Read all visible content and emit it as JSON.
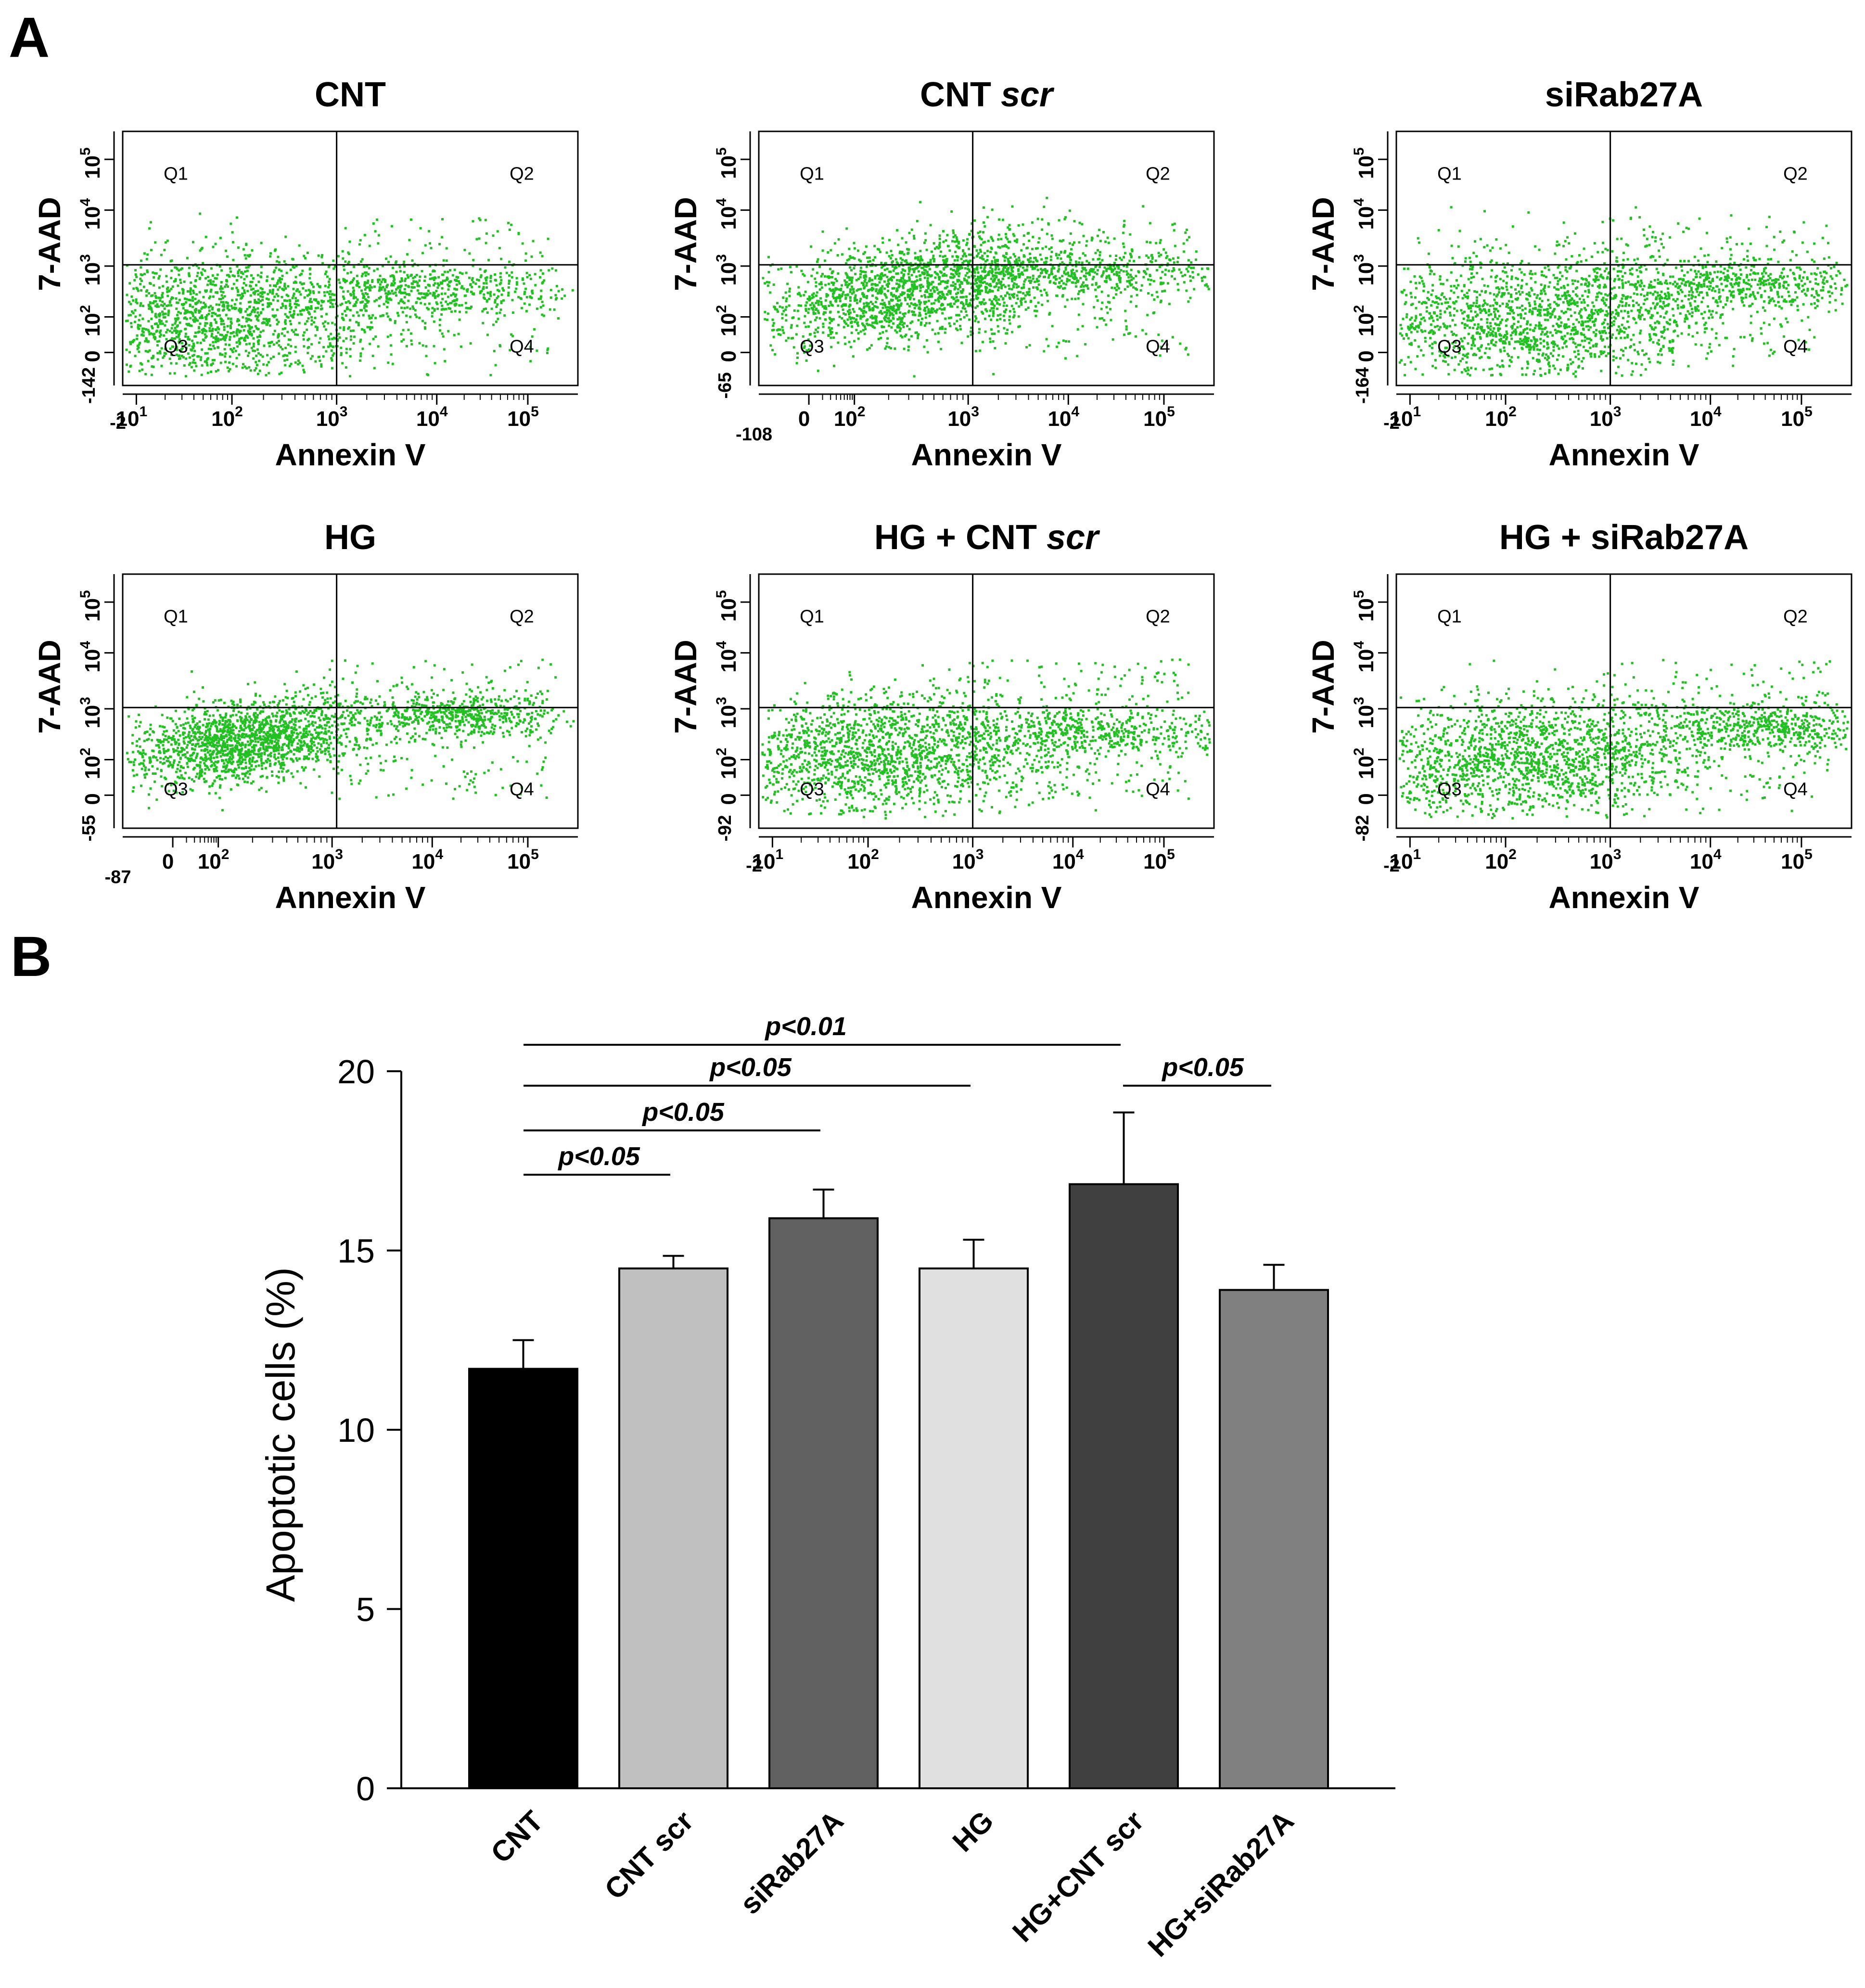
{
  "panels": {
    "a": "A",
    "b": "B"
  },
  "flow": {
    "x_title": "Annexin V",
    "y_title": "7-AAD",
    "quadrants": [
      "Q1",
      "Q2",
      "Q3",
      "Q4"
    ],
    "dot_color": "#22c022",
    "x_ticks_log": [
      {
        "base": "10",
        "exp": "1"
      },
      {
        "base": "10",
        "exp": "2"
      },
      {
        "base": "10",
        "exp": "3"
      },
      {
        "base": "10",
        "exp": "4"
      },
      {
        "base": "10",
        "exp": "5"
      }
    ],
    "x_ticks_lin": [
      {
        "base": "0",
        "exp": ""
      },
      {
        "base": "10",
        "exp": "2"
      },
      {
        "base": "10",
        "exp": "3"
      },
      {
        "base": "10",
        "exp": "4"
      },
      {
        "base": "10",
        "exp": "5"
      }
    ],
    "y_ticks": [
      {
        "base": "0",
        "exp": ""
      },
      {
        "base": "10",
        "exp": "2"
      },
      {
        "base": "10",
        "exp": "3"
      },
      {
        "base": "10",
        "exp": "4"
      },
      {
        "base": "10",
        "exp": "5"
      }
    ],
    "plots": [
      {
        "title": "CNT",
        "title_italic": "",
        "x_min": "-2",
        "x_mode": "log",
        "y_min": "-142",
        "cluster": [
          0.2,
          0.27,
          0.2,
          0.13,
          0.08
        ],
        "q2": [
          0.67,
          0.38,
          0.17,
          0.05,
          0.1
        ]
      },
      {
        "title": "CNT ",
        "title_italic": "scr",
        "x_min": "-108",
        "x_mode": "lin",
        "y_min": "-65",
        "cluster": [
          0.34,
          0.38,
          0.19,
          0.1,
          0.3
        ],
        "q2": [
          0.72,
          0.45,
          0.2,
          0.05,
          0.05
        ]
      },
      {
        "title": "siRab27A",
        "title_italic": "",
        "x_min": "-2",
        "x_mode": "log",
        "y_min": "-164",
        "cluster": [
          0.28,
          0.27,
          0.22,
          0.13,
          0.1
        ],
        "q2": [
          0.75,
          0.4,
          0.17,
          0.05,
          0.12
        ]
      },
      {
        "title": "HG",
        "title_italic": "",
        "x_min": "-87",
        "x_mode": "lin",
        "y_min": "-55",
        "cluster": [
          0.27,
          0.35,
          0.15,
          0.08,
          0.3
        ],
        "q2": [
          0.75,
          0.45,
          0.1,
          0.04,
          0.07
        ]
      },
      {
        "title": "HG + CNT ",
        "title_italic": "scr",
        "x_min": "-2",
        "x_mode": "log",
        "y_min": "-92",
        "cluster": [
          0.26,
          0.3,
          0.2,
          0.12,
          0.1
        ],
        "q2": [
          0.75,
          0.38,
          0.18,
          0.05,
          0.1
        ]
      },
      {
        "title": "HG + siRab27A",
        "title_italic": "",
        "x_min": "-2",
        "x_mode": "log",
        "y_min": "-82",
        "cluster": [
          0.28,
          0.28,
          0.2,
          0.12,
          0.12
        ],
        "q2": [
          0.8,
          0.4,
          0.12,
          0.05,
          0.13
        ]
      }
    ]
  },
  "chart_data": {
    "type": "bar",
    "categories": [
      "CNT",
      "CNT scr",
      "siRab27A",
      "HG",
      "HG+CNT scr",
      "HG+siRab27A"
    ],
    "values": [
      11.7,
      14.5,
      15.9,
      14.5,
      16.85,
      13.9
    ],
    "errors": [
      0.8,
      0.35,
      0.8,
      0.8,
      2.0,
      0.7
    ],
    "bar_colors": [
      "#000000",
      "#c0c0c0",
      "#606060",
      "#e0e0e0",
      "#404040",
      "#808080"
    ],
    "ylabel": "Apoptotic cells (%)",
    "xlabel": "",
    "ylim": [
      0,
      20
    ],
    "yticks": [
      "0",
      "5",
      "10",
      "15",
      "20"
    ],
    "grid": false,
    "significance": [
      {
        "from": 0,
        "to": 1,
        "label": "p<0.05"
      },
      {
        "from": 0,
        "to": 2,
        "label": "p<0.05"
      },
      {
        "from": 0,
        "to": 3,
        "label": "p<0.05"
      },
      {
        "from": 0,
        "to": 4,
        "label": "p<0.01"
      },
      {
        "from": 4,
        "to": 5,
        "label": "p<0.05"
      }
    ]
  }
}
